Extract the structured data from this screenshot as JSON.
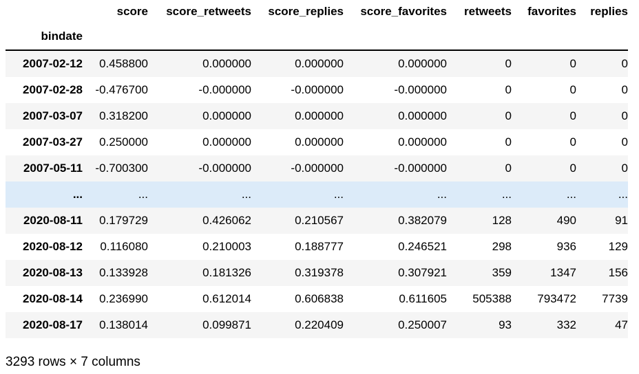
{
  "table": {
    "columns": [
      "score",
      "score_retweets",
      "score_replies",
      "score_favorites",
      "retweets",
      "favorites",
      "replies"
    ],
    "index_name": "bindate",
    "rows": [
      {
        "index": "2007-02-12",
        "cells": [
          "0.458800",
          "0.000000",
          "0.000000",
          "0.000000",
          "0",
          "0",
          "0"
        ]
      },
      {
        "index": "2007-02-28",
        "cells": [
          "-0.476700",
          "-0.000000",
          "-0.000000",
          "-0.000000",
          "0",
          "0",
          "0"
        ]
      },
      {
        "index": "2007-03-07",
        "cells": [
          "0.318200",
          "0.000000",
          "0.000000",
          "0.000000",
          "0",
          "0",
          "0"
        ]
      },
      {
        "index": "2007-03-27",
        "cells": [
          "0.250000",
          "0.000000",
          "0.000000",
          "0.000000",
          "0",
          "0",
          "0"
        ]
      },
      {
        "index": "2007-05-11",
        "cells": [
          "-0.700300",
          "-0.000000",
          "-0.000000",
          "-0.000000",
          "0",
          "0",
          "0"
        ]
      },
      {
        "index": "...",
        "cells": [
          "...",
          "...",
          "...",
          "...",
          "...",
          "...",
          "..."
        ]
      },
      {
        "index": "2020-08-11",
        "cells": [
          "0.179729",
          "0.426062",
          "0.210567",
          "0.382079",
          "128",
          "490",
          "91"
        ]
      },
      {
        "index": "2020-08-12",
        "cells": [
          "0.116080",
          "0.210003",
          "0.188777",
          "0.246521",
          "298",
          "936",
          "129"
        ]
      },
      {
        "index": "2020-08-13",
        "cells": [
          "0.133928",
          "0.181326",
          "0.319378",
          "0.307921",
          "359",
          "1347",
          "156"
        ]
      },
      {
        "index": "2020-08-14",
        "cells": [
          "0.236990",
          "0.612014",
          "0.606838",
          "0.611605",
          "505388",
          "793472",
          "7739"
        ]
      },
      {
        "index": "2020-08-17",
        "cells": [
          "0.138014",
          "0.099871",
          "0.220409",
          "0.250007",
          "93",
          "332",
          "47"
        ]
      }
    ]
  },
  "footer": {
    "shape_text": "3293 rows × 7 columns"
  },
  "colors": {
    "row_odd": "#f5f5f5",
    "row_even": "#ffffff",
    "row_highlight": "#dcebf9"
  }
}
